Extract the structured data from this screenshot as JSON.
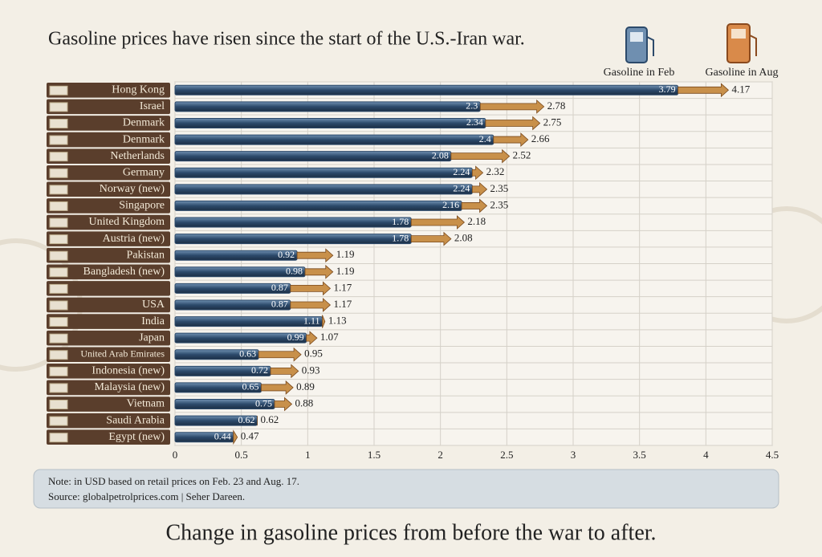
{
  "chart_data": {
    "type": "bar-arrow",
    "title": "Gasoline prices have risen since the start of the U.S.-Iran war.",
    "caption": "Change in gasoline prices from before the war to after.",
    "notes": [
      "Note: in USD based on retail prices on Feb. 23 and Aug. 17.",
      "Source: globalpetrolprices.com | Seher Dareen."
    ],
    "categories": [
      "Hong Kong",
      "Israel",
      "Denmark",
      "Denmark",
      "Netherlands",
      "Germany",
      "Norway (new)",
      "Singapore",
      "United Kingdom",
      "Austria (new)",
      "Pakistan",
      "Bangladesh (new)",
      null,
      "USA",
      "India",
      "Japan",
      "United Arab Emirates",
      "Indonesia (new)",
      "Malaysia (new)",
      "Vietnam",
      "Saudi Arabia",
      "Egypt (new)"
    ],
    "series": [
      {
        "name": "Gasoline in Feb",
        "color": "#2c4a6b",
        "values": [
          3.79,
          2.3,
          2.34,
          2.4,
          2.08,
          2.24,
          2.24,
          2.16,
          1.78,
          1.78,
          0.92,
          0.98,
          0.87,
          0.87,
          1.11,
          0.99,
          0.63,
          0.72,
          0.65,
          0.75,
          0.62,
          0.44
        ]
      },
      {
        "name": "Gasoline in Aug",
        "color": "#c8904a",
        "values": [
          4.17,
          2.78,
          2.75,
          2.66,
          2.52,
          2.32,
          2.35,
          2.35,
          2.18,
          2.08,
          1.19,
          1.19,
          1.17,
          1.17,
          1.13,
          1.07,
          0.95,
          0.93,
          0.89,
          0.88,
          0.62,
          0.47
        ]
      }
    ],
    "xlim": [
      0,
      4.5
    ],
    "xticks": [
      0,
      0.5,
      1,
      1.5,
      2,
      2.5,
      3,
      3.5,
      4,
      4.5
    ],
    "grid": true
  }
}
